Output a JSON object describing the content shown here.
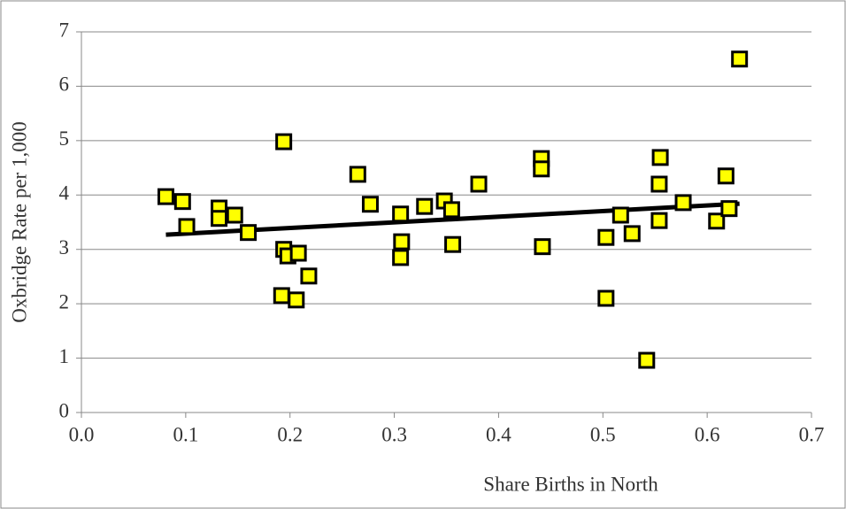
{
  "chart_data": {
    "type": "scatter",
    "x_label": "Share Births in North",
    "y_label": "Oxbridge Rate per 1,000",
    "xlim": [
      0,
      0.7
    ],
    "ylim": [
      0,
      7
    ],
    "xticks": [
      {
        "value": 0,
        "label": "0.0"
      },
      0.1,
      0.2,
      0.3,
      0.4,
      0.5,
      0.6,
      0.7
    ],
    "yticks": [
      0,
      1,
      2,
      3,
      4,
      5,
      6,
      7
    ],
    "grid": true,
    "color": "#ffff00",
    "x": [
      0.081,
      0.097,
      0.101,
      0.132,
      0.132,
      0.147,
      0.16,
      0.194,
      0.194,
      0.198,
      0.208,
      0.192,
      0.206,
      0.218,
      0.265,
      0.277,
      0.306,
      0.307,
      0.306,
      0.329,
      0.348,
      0.355,
      0.356,
      0.381,
      0.441,
      0.441,
      0.442,
      0.503,
      0.503,
      0.517,
      0.528,
      0.542,
      0.555,
      0.554,
      0.554,
      0.577,
      0.609,
      0.618,
      0.621,
      0.631
    ],
    "values": [
      3.97,
      3.88,
      3.42,
      3.76,
      3.57,
      3.63,
      3.31,
      4.98,
      3.0,
      2.88,
      2.93,
      2.15,
      2.07,
      2.51,
      4.38,
      3.83,
      3.65,
      3.14,
      2.85,
      3.79,
      3.89,
      3.73,
      3.09,
      4.2,
      4.67,
      4.48,
      3.05,
      3.22,
      2.1,
      3.63,
      3.29,
      0.96,
      4.69,
      4.2,
      3.53,
      3.86,
      3.52,
      4.35,
      3.75,
      6.5
    ],
    "trend": {
      "x": [
        0.081,
        0.631
      ],
      "values": [
        3.27,
        3.84
      ]
    }
  }
}
